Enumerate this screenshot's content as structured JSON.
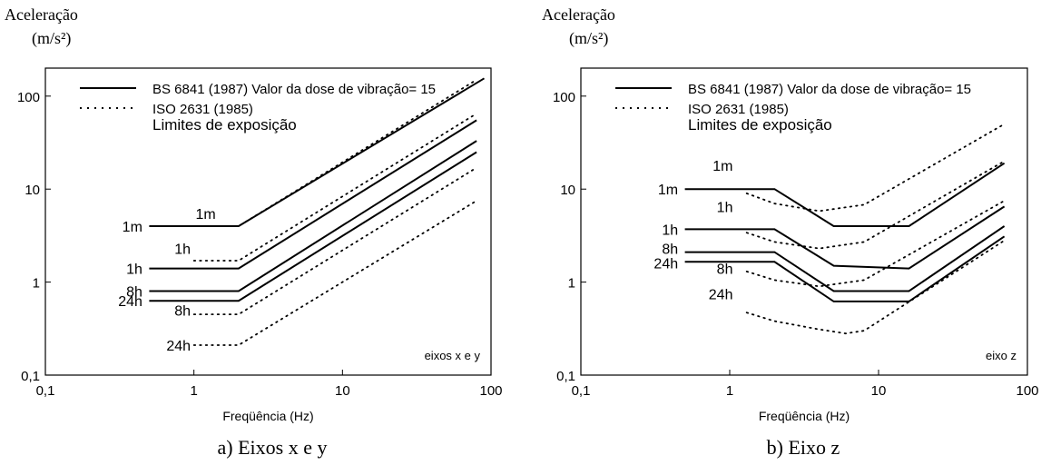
{
  "chart_data": [
    {
      "type": "line",
      "ylabel": [
        "Aceleração",
        "(m/s²)"
      ],
      "xlabel": "Freqüência (Hz)",
      "caption": "a) Eixos x e y",
      "corner_label": "eixos x e y",
      "x_scale": "log",
      "y_scale": "log",
      "xlim": [
        0.1,
        100
      ],
      "ylim": [
        0.1,
        200
      ],
      "x_ticks": [
        {
          "v": 0.1,
          "label": "0,1"
        },
        {
          "v": 1,
          "label": "1"
        },
        {
          "v": 10,
          "label": "10"
        },
        {
          "v": 100,
          "label": "100"
        }
      ],
      "y_ticks": [
        {
          "v": 0.1,
          "label": "0,1"
        },
        {
          "v": 1,
          "label": "1"
        },
        {
          "v": 10,
          "label": "10"
        },
        {
          "v": 100,
          "label": "100"
        }
      ],
      "legend": [
        {
          "style": "solid",
          "label": "BS 6841 (1987) Valor da dose de vibração= 15"
        },
        {
          "style": "dotted",
          "label": "ISO 2631 (1985)"
        },
        {
          "style": "none",
          "label": "Limites de exposição"
        }
      ],
      "series": [
        {
          "style": "solid",
          "points": [
            [
              0.5,
              4
            ],
            [
              2,
              4
            ],
            [
              90,
              155
            ]
          ]
        },
        {
          "style": "solid",
          "points": [
            [
              0.5,
              1.4
            ],
            [
              2,
              1.4
            ],
            [
              80,
              55
            ]
          ]
        },
        {
          "style": "solid",
          "points": [
            [
              0.5,
              0.8
            ],
            [
              2,
              0.8
            ],
            [
              80,
              33
            ]
          ]
        },
        {
          "style": "solid",
          "points": [
            [
              0.5,
              0.63
            ],
            [
              2,
              0.63
            ],
            [
              80,
              25
            ]
          ]
        },
        {
          "style": "dotted",
          "points": [
            [
              1,
              4
            ],
            [
              2,
              4
            ],
            [
              80,
              150
            ]
          ]
        },
        {
          "style": "dotted",
          "points": [
            [
              1,
              1.7
            ],
            [
              2,
              1.7
            ],
            [
              80,
              65
            ]
          ]
        },
        {
          "style": "dotted",
          "points": [
            [
              1,
              0.45
            ],
            [
              2,
              0.45
            ],
            [
              80,
              17
            ]
          ]
        },
        {
          "style": "dotted",
          "points": [
            [
              1,
              0.21
            ],
            [
              2,
              0.21
            ],
            [
              80,
              7.5
            ]
          ]
        }
      ],
      "annotations": [
        {
          "text": "1m",
          "x": 0.45,
          "y": 4,
          "anchor": "end"
        },
        {
          "text": "1h",
          "x": 0.45,
          "y": 1.4,
          "anchor": "end"
        },
        {
          "text": "8h",
          "x": 0.45,
          "y": 0.8,
          "anchor": "end"
        },
        {
          "text": "24h",
          "x": 0.45,
          "y": 0.63,
          "anchor": "end"
        },
        {
          "text": "1m",
          "x": 1.2,
          "y": 5.5,
          "anchor": "middle"
        },
        {
          "text": "1h",
          "x": 0.95,
          "y": 2.3,
          "anchor": "end"
        },
        {
          "text": "8h",
          "x": 0.95,
          "y": 0.5,
          "anchor": "end"
        },
        {
          "text": "24h",
          "x": 0.95,
          "y": 0.21,
          "anchor": "end"
        }
      ]
    },
    {
      "type": "line",
      "ylabel": [
        "Aceleração",
        "(m/s²)"
      ],
      "xlabel": "Freqüência (Hz)",
      "caption": "b) Eixo z",
      "corner_label": "eixo z",
      "x_scale": "log",
      "y_scale": "log",
      "xlim": [
        0.1,
        100
      ],
      "ylim": [
        0.1,
        200
      ],
      "x_ticks": [
        {
          "v": 0.1,
          "label": "0,1"
        },
        {
          "v": 1,
          "label": "1"
        },
        {
          "v": 10,
          "label": "10"
        },
        {
          "v": 100,
          "label": "100"
        }
      ],
      "y_ticks": [
        {
          "v": 0.1,
          "label": "0,1"
        },
        {
          "v": 1,
          "label": "1"
        },
        {
          "v": 10,
          "label": "10"
        },
        {
          "v": 100,
          "label": "100"
        }
      ],
      "legend": [
        {
          "style": "solid",
          "label": "BS 6841 (1987) Valor da dose de vibração= 15"
        },
        {
          "style": "dotted",
          "label": "ISO 2631 (1985)"
        },
        {
          "style": "none",
          "label": "Limites de exposição"
        }
      ],
      "series": [
        {
          "style": "solid",
          "points": [
            [
              0.5,
              10
            ],
            [
              2,
              10
            ],
            [
              5,
              4
            ],
            [
              16,
              4
            ],
            [
              70,
              19
            ]
          ]
        },
        {
          "style": "solid",
          "points": [
            [
              0.5,
              3.7
            ],
            [
              2,
              3.7
            ],
            [
              5,
              1.5
            ],
            [
              16,
              1.4
            ],
            [
              70,
              6.5
            ]
          ]
        },
        {
          "style": "solid",
          "points": [
            [
              0.5,
              2.1
            ],
            [
              2,
              2.1
            ],
            [
              5,
              0.8
            ],
            [
              16,
              0.8
            ],
            [
              70,
              4
            ]
          ]
        },
        {
          "style": "solid",
          "points": [
            [
              0.5,
              1.65
            ],
            [
              2,
              1.65
            ],
            [
              5,
              0.62
            ],
            [
              16,
              0.62
            ],
            [
              70,
              3.1
            ]
          ]
        },
        {
          "style": "dotted",
          "points": [
            [
              1.3,
              9
            ],
            [
              2,
              7
            ],
            [
              4,
              5.8
            ],
            [
              8,
              6.8
            ],
            [
              70,
              50
            ]
          ]
        },
        {
          "style": "dotted",
          "points": [
            [
              1.3,
              3.4
            ],
            [
              2,
              2.7
            ],
            [
              4,
              2.3
            ],
            [
              8,
              2.7
            ],
            [
              70,
              20
            ]
          ]
        },
        {
          "style": "dotted",
          "points": [
            [
              1.3,
              1.3
            ],
            [
              2,
              1.05
            ],
            [
              4,
              0.9
            ],
            [
              8,
              1.05
            ],
            [
              70,
              7.5
            ]
          ]
        },
        {
          "style": "dotted",
          "points": [
            [
              1.3,
              0.47
            ],
            [
              2,
              0.38
            ],
            [
              4,
              0.31
            ],
            [
              6,
              0.28
            ],
            [
              8,
              0.3
            ],
            [
              70,
              2.8
            ]
          ]
        }
      ],
      "annotations": [
        {
          "text": "1m",
          "x": 0.45,
          "y": 10,
          "anchor": "end"
        },
        {
          "text": "1h",
          "x": 0.45,
          "y": 3.7,
          "anchor": "end"
        },
        {
          "text": "8h",
          "x": 0.45,
          "y": 2.3,
          "anchor": "end"
        },
        {
          "text": "24h",
          "x": 0.45,
          "y": 1.6,
          "anchor": "end"
        },
        {
          "text": "1m",
          "x": 1.05,
          "y": 18,
          "anchor": "end"
        },
        {
          "text": "1h",
          "x": 1.05,
          "y": 6.5,
          "anchor": "end"
        },
        {
          "text": "8h",
          "x": 1.05,
          "y": 1.4,
          "anchor": "end"
        },
        {
          "text": "24h",
          "x": 1.05,
          "y": 0.75,
          "anchor": "end"
        }
      ]
    }
  ]
}
